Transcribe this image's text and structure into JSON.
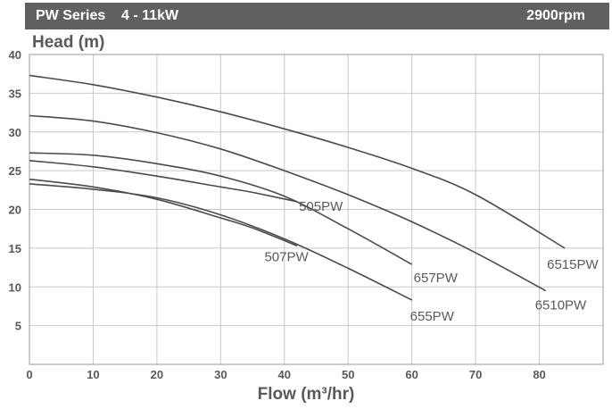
{
  "header": {
    "series_title": "PW Series    4 - 11kW",
    "speed": "2900rpm",
    "background": "#5f6062"
  },
  "chart_data": {
    "type": "line",
    "title": "",
    "xlabel": "Flow (m³/hr)",
    "ylabel": "Head (m)",
    "xlim": [
      0,
      90
    ],
    "ylim": [
      0,
      40
    ],
    "x_ticks": [
      0,
      10,
      20,
      30,
      40,
      50,
      60,
      70,
      80
    ],
    "y_ticks": [
      5,
      10,
      15,
      20,
      25,
      30,
      35,
      40
    ],
    "grid": true,
    "line_color": "#4a4a4c",
    "series": [
      {
        "name": "505PW",
        "x": [
          0,
          10,
          20,
          30,
          35,
          42
        ],
        "y": [
          26.3,
          25.5,
          24.3,
          22.9,
          22.2,
          21.0
        ]
      },
      {
        "name": "507PW",
        "x": [
          0,
          10,
          20,
          30,
          35,
          42
        ],
        "y": [
          23.9,
          22.9,
          21.3,
          18.9,
          17.6,
          15.3
        ]
      },
      {
        "name": "655PW",
        "x": [
          0,
          10,
          20,
          30,
          40,
          50,
          60
        ],
        "y": [
          23.3,
          22.6,
          21.5,
          19.3,
          16.2,
          12.4,
          8.3
        ]
      },
      {
        "name": "657PW",
        "x": [
          0,
          10,
          20,
          30,
          40,
          50,
          60
        ],
        "y": [
          27.3,
          27.0,
          25.9,
          24.3,
          21.7,
          17.5,
          12.9
        ]
      },
      {
        "name": "6510PW",
        "x": [
          0,
          10,
          20,
          30,
          40,
          50,
          60,
          70,
          81
        ],
        "y": [
          32.1,
          31.4,
          29.9,
          27.8,
          25.0,
          21.9,
          18.4,
          14.4,
          9.5
        ]
      },
      {
        "name": "6515PW",
        "x": [
          0,
          10,
          20,
          30,
          40,
          50,
          60,
          70,
          84
        ],
        "y": [
          37.3,
          36.1,
          34.5,
          32.6,
          30.4,
          28.0,
          25.3,
          21.9,
          15.0
        ]
      }
    ]
  }
}
